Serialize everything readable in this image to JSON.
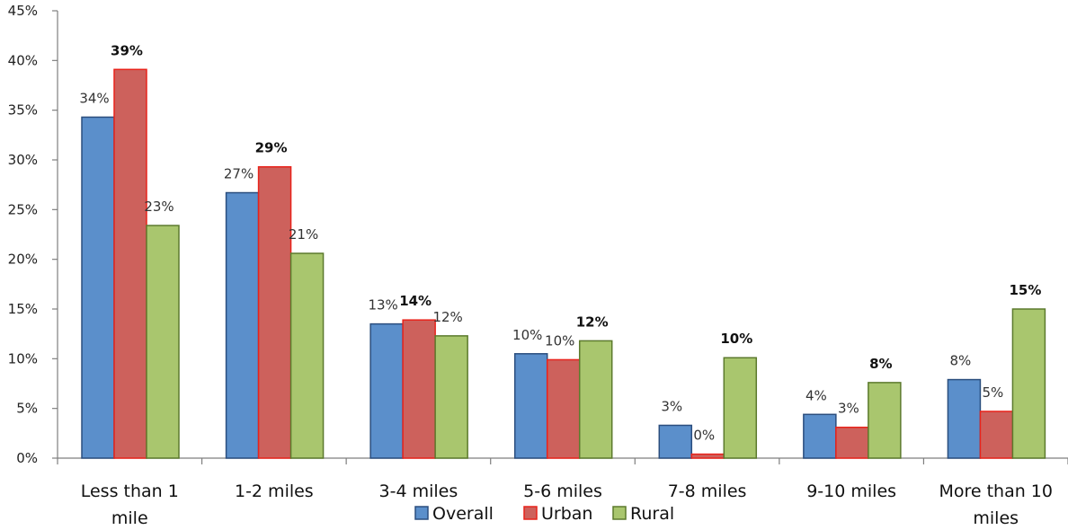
{
  "chart_data": {
    "type": "bar",
    "categories": [
      "Less than 1\nmile",
      "1-2 miles",
      "3-4 miles",
      "5-6 miles",
      "7-8 miles",
      "9-10 miles",
      "More than 10\nmiles"
    ],
    "series": [
      {
        "name": "Overall",
        "color": "#5b8fcb",
        "border": "#2b4e7e",
        "values": [
          34.3,
          26.7,
          13.5,
          10.5,
          3.3,
          4.4,
          7.9
        ],
        "labels": [
          "34%",
          "27%",
          "13%",
          "10%",
          "3%",
          "4%",
          "8%"
        ],
        "bold": [
          false,
          false,
          false,
          false,
          false,
          false,
          false
        ]
      },
      {
        "name": "Urban",
        "color": "#cd615c",
        "border": "#e8231b",
        "values": [
          39.1,
          29.3,
          13.9,
          9.9,
          0.4,
          3.1,
          4.7
        ],
        "labels": [
          "39%",
          "29%",
          "14%",
          "10%",
          "0%",
          "3%",
          "5%"
        ],
        "bold": [
          true,
          true,
          true,
          false,
          false,
          false,
          false
        ]
      },
      {
        "name": "Rural",
        "color": "#a9c66e",
        "border": "#5c7a2d",
        "values": [
          23.4,
          20.6,
          12.3,
          11.8,
          10.1,
          7.6,
          15.0
        ],
        "labels": [
          "23%",
          "21%",
          "12%",
          "12%",
          "10%",
          "8%",
          "15%"
        ],
        "bold": [
          false,
          false,
          false,
          true,
          true,
          true,
          true
        ]
      }
    ],
    "y_ticks": [
      "0%",
      "5%",
      "10%",
      "15%",
      "20%",
      "25%",
      "30%",
      "35%",
      "40%",
      "45%"
    ],
    "ylim": [
      0,
      45
    ],
    "title": "",
    "xlabel": "",
    "ylabel": "",
    "grid": false,
    "legend": "bottom-center"
  }
}
